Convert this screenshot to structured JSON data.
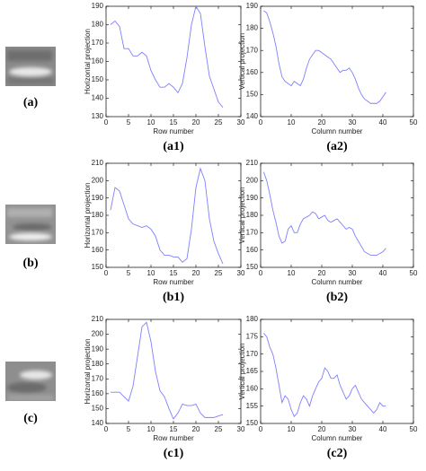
{
  "images": [
    {
      "label": "(a)"
    },
    {
      "label": "(b)"
    },
    {
      "label": "(c)"
    }
  ],
  "chart_data": [
    {
      "type": "line",
      "caption": "(a1)",
      "xlabel": "Row number",
      "ylabel": "Horizontal projection",
      "color": "#7f7fff",
      "x": [
        1,
        2,
        3,
        4,
        5,
        6,
        7,
        8,
        9,
        10,
        11,
        12,
        13,
        14,
        15,
        16,
        17,
        18,
        19,
        20,
        21,
        22,
        23,
        24,
        25,
        26
      ],
      "values": [
        180,
        182,
        179,
        167,
        167,
        163,
        163,
        165,
        163,
        155,
        150,
        146,
        146,
        148,
        146,
        143,
        148,
        162,
        180,
        190,
        186,
        168,
        152,
        145,
        138,
        135
      ],
      "xlim": [
        0,
        30
      ],
      "xticks": [
        0,
        5,
        10,
        15,
        20,
        25,
        30
      ],
      "ylim": [
        130,
        190
      ],
      "yticks": [
        130,
        140,
        150,
        160,
        170,
        180,
        190
      ]
    },
    {
      "type": "line",
      "caption": "(a2)",
      "xlabel": "Column number",
      "ylabel": "Vertical projection",
      "color": "#7f7fff",
      "x": [
        1,
        2,
        3,
        4,
        5,
        6,
        7,
        8,
        9,
        10,
        11,
        12,
        13,
        14,
        15,
        16,
        17,
        18,
        19,
        20,
        21,
        22,
        23,
        24,
        25,
        26,
        27,
        28,
        29,
        30,
        31,
        32,
        33,
        34,
        35,
        36,
        37,
        38,
        39,
        40,
        41
      ],
      "values": [
        188,
        187,
        183,
        178,
        172,
        164,
        158,
        156,
        155,
        154,
        156,
        155,
        154,
        157,
        162,
        166,
        168,
        170,
        170,
        169,
        168,
        167,
        166,
        164,
        162,
        160,
        161,
        161,
        162,
        160,
        157,
        153,
        150,
        148,
        147,
        146,
        146,
        146,
        147,
        149,
        151
      ],
      "xlim": [
        0,
        50
      ],
      "xticks": [
        0,
        10,
        20,
        30,
        40,
        50
      ],
      "ylim": [
        140,
        190
      ],
      "yticks": [
        140,
        150,
        160,
        170,
        180,
        190
      ]
    },
    {
      "type": "line",
      "caption": "(b1)",
      "xlabel": "Row number",
      "ylabel": "Horizontal projection",
      "color": "#7f7fff",
      "x": [
        1,
        2,
        3,
        4,
        5,
        6,
        7,
        8,
        9,
        10,
        11,
        12,
        13,
        14,
        15,
        16,
        17,
        18,
        19,
        20,
        21,
        22,
        23,
        24,
        25,
        26
      ],
      "values": [
        183,
        196,
        194,
        186,
        178,
        175,
        174,
        173,
        174,
        172,
        168,
        160,
        157,
        157,
        156,
        156,
        153,
        155,
        172,
        196,
        207,
        200,
        178,
        165,
        158,
        152
      ],
      "xlim": [
        0,
        30
      ],
      "xticks": [
        0,
        5,
        10,
        15,
        20,
        25,
        30
      ],
      "ylim": [
        150,
        210
      ],
      "yticks": [
        150,
        160,
        170,
        180,
        190,
        200,
        210
      ]
    },
    {
      "type": "line",
      "caption": "(b2)",
      "xlabel": "Column number",
      "ylabel": "Vertical projection",
      "color": "#7f7fff",
      "x": [
        1,
        2,
        3,
        4,
        5,
        6,
        7,
        8,
        9,
        10,
        11,
        12,
        13,
        14,
        15,
        16,
        17,
        18,
        19,
        20,
        21,
        22,
        23,
        24,
        25,
        26,
        27,
        28,
        29,
        30,
        31,
        32,
        33,
        34,
        35,
        36,
        37,
        38,
        39,
        40,
        41
      ],
      "values": [
        205,
        200,
        192,
        183,
        176,
        168,
        164,
        165,
        172,
        174,
        170,
        170,
        175,
        178,
        179,
        180,
        182,
        181,
        178,
        179,
        180,
        177,
        176,
        177,
        178,
        176,
        174,
        172,
        173,
        172,
        168,
        165,
        162,
        159,
        158,
        157,
        157,
        157,
        158,
        159,
        161
      ],
      "xlim": [
        0,
        50
      ],
      "xticks": [
        0,
        10,
        20,
        30,
        40,
        50
      ],
      "ylim": [
        150,
        210
      ],
      "yticks": [
        150,
        160,
        170,
        180,
        190,
        200,
        210
      ]
    },
    {
      "type": "line",
      "caption": "(c1)",
      "xlabel": "Row number",
      "ylabel": "Horizontal projection",
      "color": "#7f7fff",
      "x": [
        1,
        2,
        3,
        4,
        5,
        6,
        7,
        8,
        9,
        10,
        11,
        12,
        13,
        14,
        15,
        16,
        17,
        18,
        19,
        20,
        21,
        22,
        23,
        24,
        25,
        26
      ],
      "values": [
        161,
        161,
        161,
        158,
        155,
        165,
        185,
        205,
        208,
        195,
        175,
        162,
        158,
        150,
        143,
        147,
        153,
        152,
        152,
        153,
        147,
        144,
        144,
        144,
        145,
        146
      ],
      "xlim": [
        0,
        30
      ],
      "xticks": [
        0,
        5,
        10,
        15,
        20,
        25,
        30
      ],
      "ylim": [
        140,
        210
      ],
      "yticks": [
        140,
        150,
        160,
        170,
        180,
        190,
        200,
        210
      ]
    },
    {
      "type": "line",
      "caption": "(c2)",
      "xlabel": "Column number",
      "ylabel": "Vertical projection",
      "color": "#7f7fff",
      "x": [
        1,
        2,
        3,
        4,
        5,
        6,
        7,
        8,
        9,
        10,
        11,
        12,
        13,
        14,
        15,
        16,
        17,
        18,
        19,
        20,
        21,
        22,
        23,
        24,
        25,
        26,
        27,
        28,
        29,
        30,
        31,
        32,
        33,
        34,
        35,
        36,
        37,
        38,
        39,
        40,
        41
      ],
      "values": [
        176,
        175,
        172,
        170,
        166,
        161,
        156,
        158,
        157,
        154,
        152,
        153,
        156,
        158,
        157,
        155,
        158,
        160,
        162,
        163,
        166,
        165,
        163,
        163,
        164,
        161,
        159,
        157,
        158,
        160,
        161,
        159,
        157,
        156,
        155,
        154,
        153,
        154,
        156,
        155,
        155
      ],
      "xlim": [
        0,
        50
      ],
      "xticks": [
        0,
        10,
        20,
        30,
        40,
        50
      ],
      "ylim": [
        150,
        180
      ],
      "yticks": [
        150,
        155,
        160,
        165,
        170,
        175,
        180
      ]
    }
  ]
}
